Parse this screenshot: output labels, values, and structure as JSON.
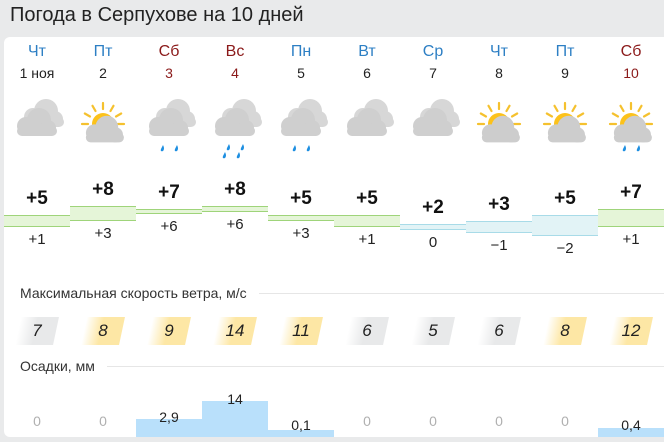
{
  "title": "Погода в Серпухове на 10 дней",
  "days": [
    {
      "dow": "Чт",
      "date": "1 ноя",
      "weekend": false,
      "icon": "cloudy",
      "tmax": "+5",
      "tmin": "+1",
      "max": 5,
      "min": 1,
      "wind": "7",
      "wind_value": 7,
      "precip": "0",
      "precip_value": 0
    },
    {
      "dow": "Пт",
      "date": "2",
      "weekend": false,
      "icon": "partly-sunny",
      "tmax": "+8",
      "tmin": "+3",
      "max": 8,
      "min": 3,
      "wind": "8",
      "wind_value": 8,
      "precip": "0",
      "precip_value": 0
    },
    {
      "dow": "Сб",
      "date": "3",
      "weekend": true,
      "icon": "cloudy-rain",
      "tmax": "+7",
      "tmin": "+6",
      "max": 7,
      "min": 6,
      "wind": "9",
      "wind_value": 9,
      "precip": "2,9",
      "precip_value": 2.9
    },
    {
      "dow": "Вс",
      "date": "4",
      "weekend": true,
      "icon": "cloudy-heavy-rain",
      "tmax": "+8",
      "tmin": "+6",
      "max": 8,
      "min": 6,
      "wind": "14",
      "wind_value": 14,
      "precip": "14",
      "precip_value": 14
    },
    {
      "dow": "Пн",
      "date": "5",
      "weekend": false,
      "icon": "cloudy-rain",
      "tmax": "+5",
      "tmin": "+3",
      "max": 5,
      "min": 3,
      "wind": "11",
      "wind_value": 11,
      "precip": "0,1",
      "precip_value": 0.1
    },
    {
      "dow": "Вт",
      "date": "6",
      "weekend": false,
      "icon": "cloudy",
      "tmax": "+5",
      "tmin": "+1",
      "max": 5,
      "min": 1,
      "wind": "6",
      "wind_value": 6,
      "precip": "0",
      "precip_value": 0
    },
    {
      "dow": "Ср",
      "date": "7",
      "weekend": false,
      "icon": "cloudy",
      "tmax": "+2",
      "tmin": "0",
      "max": 2,
      "min": 0,
      "wind": "5",
      "wind_value": 5,
      "precip": "0",
      "precip_value": 0
    },
    {
      "dow": "Чт",
      "date": "8",
      "weekend": false,
      "icon": "partly-sunny",
      "tmax": "+3",
      "tmin": "−1",
      "max": 3,
      "min": -1,
      "wind": "6",
      "wind_value": 6,
      "precip": "0",
      "precip_value": 0
    },
    {
      "dow": "Пт",
      "date": "9",
      "weekend": false,
      "icon": "partly-sunny",
      "tmax": "+5",
      "tmin": "−2",
      "max": 5,
      "min": -2,
      "wind": "8",
      "wind_value": 8,
      "precip": "0",
      "precip_value": 0
    },
    {
      "dow": "Сб",
      "date": "10",
      "weekend": true,
      "icon": "partly-sunny-rain",
      "tmax": "+7",
      "tmin": "+1",
      "max": 7,
      "min": 1,
      "wind": "12",
      "wind_value": 12,
      "precip": "0,4",
      "precip_value": 0.4
    }
  ],
  "wind_label": "Максимальная скорость ветра, м/с",
  "precip_label": "Осадки, мм",
  "colors": {
    "weekday": "#2d7fc4",
    "weekend": "#8b1a1a",
    "wind_high": "#fde7a5",
    "wind_low": "#e8e9ea",
    "precip": "#b9e0fb",
    "temp_band": "#e5f5d8"
  }
}
